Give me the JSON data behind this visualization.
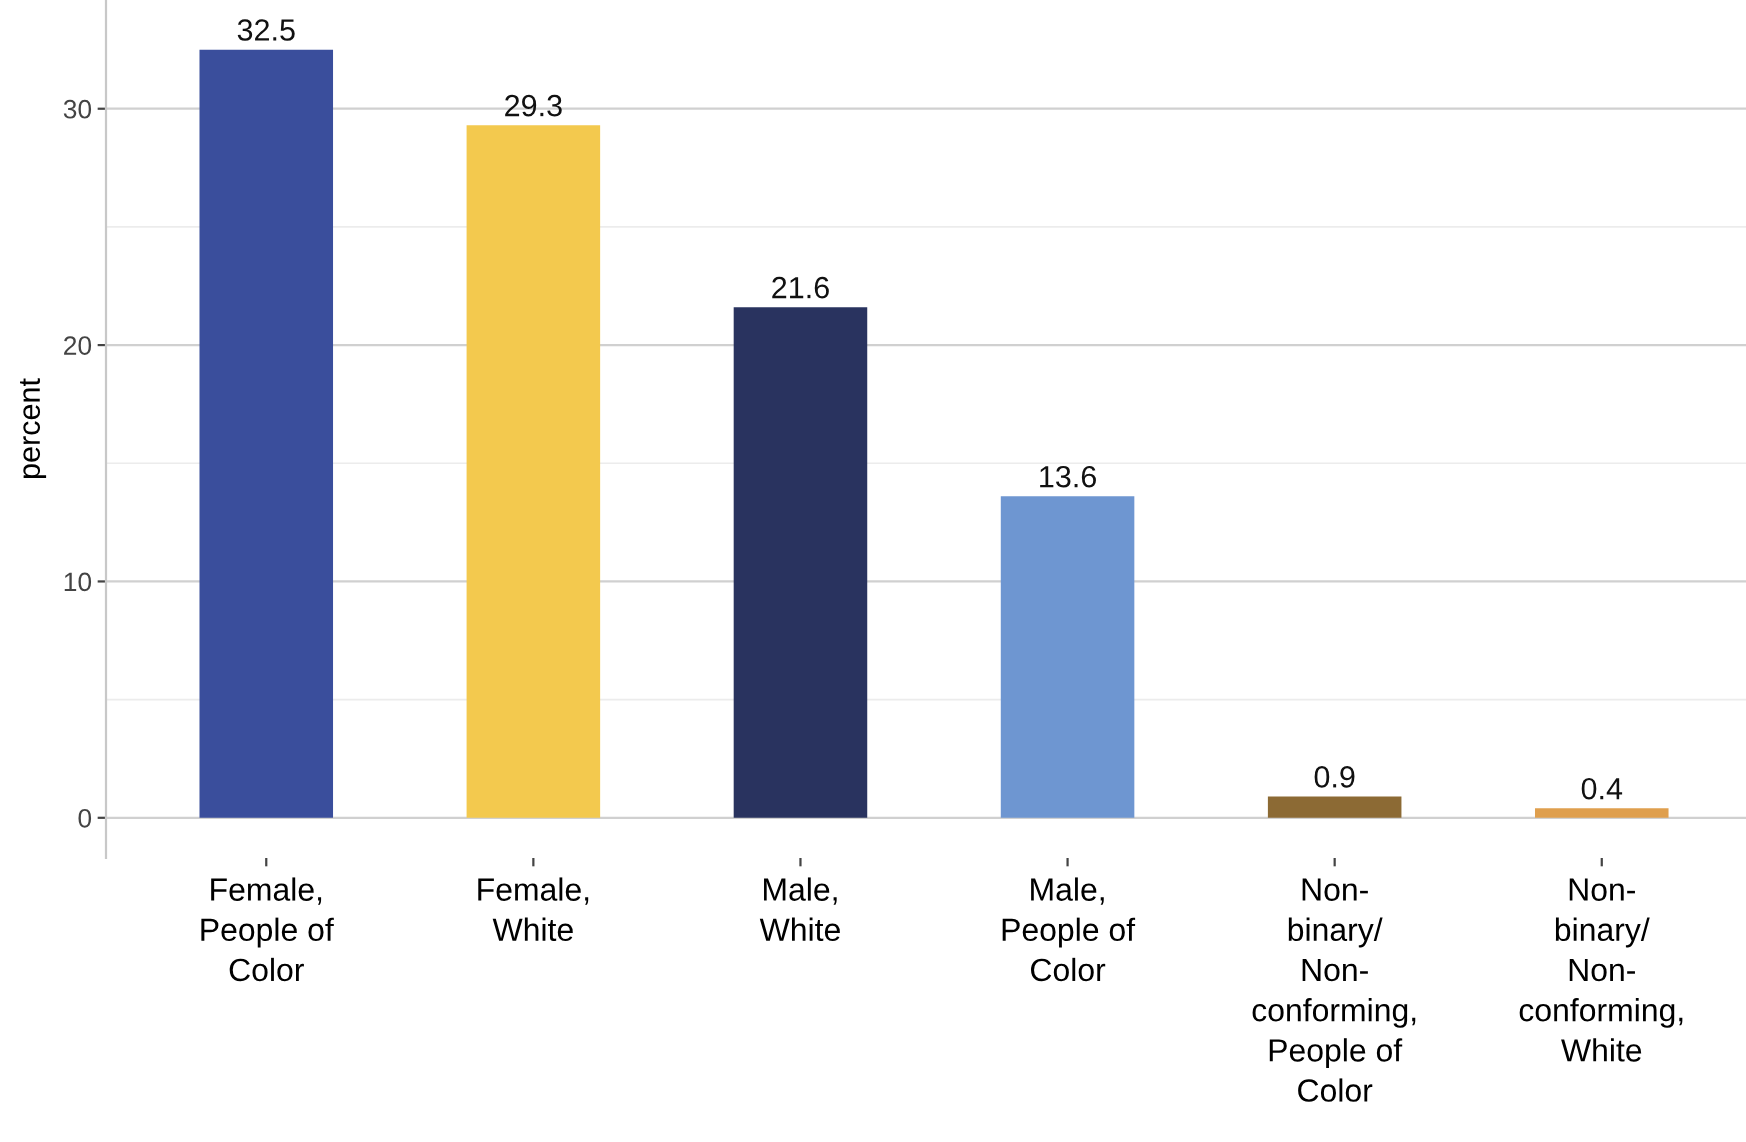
{
  "chart_data": {
    "type": "bar",
    "categories": [
      "Female,\nPeople of\nColor",
      "Female,\nWhite",
      "Male,\nWhite",
      "Male,\nPeople of\nColor",
      "Non-\nbinary/\nNon-\nconforming,\nPeople of\nColor",
      "Non-\nbinary/\nNon-\nconforming,\nWhite"
    ],
    "values": [
      32.5,
      29.3,
      21.6,
      13.6,
      0.9,
      0.4
    ],
    "colors": [
      "#3a4e9c",
      "#f3c94e",
      "#29335f",
      "#6e96d1",
      "#8c6a34",
      "#df9f4e"
    ],
    "ylabel": "percent",
    "ylim": [
      -1.7,
      34.6
    ],
    "yticks": [
      0,
      {
        "value": 5,
        "label": null
      },
      10,
      {
        "value": 15,
        "label": null
      },
      20,
      {
        "value": 25,
        "label": null
      },
      30
    ],
    "grid": "y",
    "data_labels": true
  }
}
